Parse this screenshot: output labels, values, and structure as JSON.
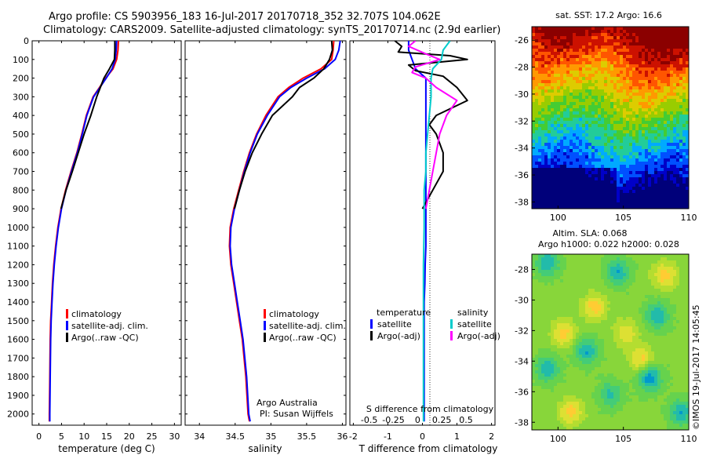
{
  "header": {
    "title_line1": "Argo profile: CS 5903956_183 16-Jul-2017 20170718_352 32.707S 104.062E",
    "title_line2": "Climatology: CARS2009. Satellite-adjusted climatology: synTS_20170714.nc (2.9d earlier)"
  },
  "chart_data": [
    {
      "id": "temperature",
      "type": "line",
      "xlabel": "temperature (deg C)",
      "xlim": [
        -1.5,
        31.5
      ],
      "xticks": [
        0,
        5,
        10,
        15,
        20,
        25,
        30
      ],
      "ylim": [
        0,
        2060
      ],
      "yticks": [
        0,
        100,
        200,
        300,
        400,
        500,
        600,
        700,
        800,
        900,
        1000,
        1100,
        1200,
        1300,
        1400,
        1500,
        1600,
        1700,
        1800,
        1900,
        2000
      ],
      "reversed_y": true,
      "legend": [
        "climatology",
        "satellite-adj. clim.",
        "Argo(..raw -QC)"
      ],
      "series": [
        {
          "name": "climatology",
          "color": "#ff0000",
          "x": [
            17.6,
            17.5,
            17.2,
            16.4,
            14.8,
            13.4,
            12.0,
            10.5,
            9.5,
            8.4,
            7.1,
            5.9,
            4.9,
            4.2,
            3.7,
            3.3,
            3.0,
            2.8,
            2.6,
            2.5,
            2.4,
            2.3,
            2.3
          ],
          "y": [
            0,
            50,
            100,
            150,
            200,
            250,
            300,
            400,
            500,
            600,
            700,
            800,
            900,
            1000,
            1100,
            1200,
            1300,
            1400,
            1500,
            1600,
            1800,
            2000,
            2040
          ]
        },
        {
          "name": "satellite-adj. clim.",
          "color": "#0000ff",
          "x": [
            17.2,
            17.1,
            16.9,
            16.2,
            14.9,
            13.5,
            12.1,
            10.6,
            9.6,
            8.5,
            7.2,
            6.0,
            5.0,
            4.3,
            3.8,
            3.4,
            3.1,
            2.9,
            2.7,
            2.6,
            2.5,
            2.4,
            2.4
          ],
          "y": [
            0,
            50,
            100,
            150,
            200,
            250,
            300,
            400,
            500,
            600,
            700,
            800,
            900,
            1000,
            1100,
            1200,
            1300,
            1400,
            1500,
            1600,
            1800,
            2000,
            2040
          ]
        },
        {
          "name": "Argo(..raw -QC)",
          "color": "#000000",
          "x": [
            16.8,
            16.8,
            16.7,
            15.6,
            14.4,
            13.6,
            12.8,
            11.5,
            10.0,
            8.7,
            7.4,
            6.0,
            4.9
          ],
          "y": [
            0,
            50,
            100,
            150,
            200,
            250,
            300,
            400,
            500,
            600,
            700,
            800,
            900
          ]
        }
      ]
    },
    {
      "id": "salinity",
      "type": "line",
      "xlabel": "salinity",
      "xlim": [
        33.8,
        36.05
      ],
      "xticks": [
        34,
        34.5,
        35,
        35.5,
        36
      ],
      "ylim": [
        0,
        2060
      ],
      "reversed_y": true,
      "legend": [
        "climatology",
        "satellite-adj. clim.",
        "Argo(..raw -QC)"
      ],
      "annotation": [
        "Argo Australia",
        "PI: Susan Wijffels"
      ],
      "series": [
        {
          "name": "climatology",
          "color": "#ff0000",
          "x": [
            35.88,
            35.87,
            35.85,
            35.7,
            35.45,
            35.25,
            35.1,
            34.93,
            34.8,
            34.7,
            34.62,
            34.55,
            34.48,
            34.43,
            34.42,
            34.44,
            34.48,
            34.52,
            34.56,
            34.6,
            34.65,
            34.68,
            34.7
          ],
          "y": [
            0,
            50,
            100,
            150,
            200,
            250,
            300,
            400,
            500,
            600,
            700,
            800,
            900,
            1000,
            1100,
            1200,
            1300,
            1400,
            1500,
            1600,
            1800,
            2000,
            2040
          ]
        },
        {
          "name": "satellite-adj. clim.",
          "color": "#0000ff",
          "x": [
            35.97,
            35.95,
            35.9,
            35.75,
            35.5,
            35.28,
            35.12,
            34.95,
            34.81,
            34.71,
            34.63,
            34.56,
            34.49,
            34.44,
            34.43,
            34.45,
            34.49,
            34.53,
            34.57,
            34.61,
            34.66,
            34.69,
            34.71
          ],
          "y": [
            0,
            50,
            100,
            150,
            200,
            250,
            300,
            400,
            500,
            600,
            700,
            800,
            900,
            1000,
            1100,
            1200,
            1300,
            1400,
            1500,
            1600,
            1800,
            2000,
            2040
          ]
        },
        {
          "name": "Argo(..raw -QC)",
          "color": "#000000",
          "x": [
            35.85,
            35.86,
            35.82,
            35.74,
            35.6,
            35.4,
            35.3,
            35.02,
            34.87,
            34.74,
            34.64,
            34.56,
            34.49
          ],
          "y": [
            0,
            50,
            100,
            150,
            200,
            250,
            300,
            400,
            500,
            600,
            700,
            800,
            900
          ]
        }
      ]
    },
    {
      "id": "difference",
      "type": "line",
      "xlabel": "T difference from climatology",
      "xlabel2": "S difference from climatology",
      "xlim": [
        -2.1,
        2.1
      ],
      "xticks": [
        -2,
        -1,
        0,
        1,
        2
      ],
      "xticks2": [
        -0.5,
        -0.25,
        0,
        0.25,
        0.5
      ],
      "xticklabels2": [
        "-0.5",
        "-0.25",
        "0",
        "0.25",
        "0.5"
      ],
      "ylim": [
        0,
        2060
      ],
      "reversed_y": true,
      "legend_groups": [
        {
          "heading": "temperature",
          "items": [
            "satellite",
            "Argo(-adj)"
          ]
        },
        {
          "heading": "salinity",
          "items": [
            "satellite",
            "Argo(-adj)"
          ]
        }
      ],
      "series": [
        {
          "name": "temperature satellite",
          "color": "#0000ff",
          "x": [
            -0.4,
            -0.4,
            -0.3,
            -0.2,
            0.1,
            0.1,
            0.1,
            0.1,
            0.1,
            0.1,
            0.1,
            0.1,
            0.1,
            0.1,
            0.08,
            0.07,
            0.05,
            0.05,
            0.05,
            0.05,
            0.05,
            0.05
          ],
          "y": [
            0,
            50,
            100,
            150,
            200,
            300,
            400,
            500,
            600,
            700,
            800,
            900,
            1000,
            1100,
            1200,
            1300,
            1400,
            1500,
            1600,
            1800,
            2000,
            2040
          ]
        },
        {
          "name": "temperature Argo(-adj)",
          "color": "#000000",
          "x": [
            -0.8,
            -0.6,
            -0.7,
            0.8,
            1.3,
            -0.4,
            -0.2,
            0.6,
            1.0,
            1.3,
            0.4,
            0.2,
            0.4,
            0.6,
            0.6,
            0.3,
            0.0
          ],
          "y": [
            0,
            30,
            60,
            80,
            100,
            130,
            160,
            190,
            250,
            320,
            400,
            450,
            500,
            600,
            700,
            800,
            900
          ]
        },
        {
          "name": "salinity satellite",
          "color": "#00cccc",
          "x": [
            0.8,
            0.6,
            0.55,
            0.3,
            0.25,
            0.25,
            0.2,
            0.15,
            0.1,
            0.1,
            0.05,
            0.05,
            0.05,
            0.03,
            0.03,
            0.03,
            0.03,
            0.03
          ],
          "y": [
            0,
            50,
            100,
            150,
            200,
            300,
            400,
            500,
            600,
            700,
            800,
            900,
            1000,
            1200,
            1400,
            1600,
            1800,
            2040
          ]
        },
        {
          "name": "salinity Argo(-adj)",
          "color": "#ff00ff",
          "x": [
            -0.2,
            -0.4,
            0.1,
            0.5,
            -0.2,
            -0.3,
            0.1,
            0.4,
            1.0,
            0.7,
            0.6,
            0.5,
            0.4,
            0.3,
            0.2,
            0.1
          ],
          "y": [
            0,
            30,
            70,
            100,
            140,
            170,
            200,
            250,
            320,
            400,
            450,
            500,
            600,
            700,
            800,
            900
          ]
        }
      ]
    },
    {
      "id": "sst_map",
      "type": "heatmap",
      "title": "sat. SST: 17.2  Argo: 16.6",
      "xticks": [
        100,
        105,
        110
      ],
      "yticks": [
        -26,
        -28,
        -30,
        -32,
        -34,
        -36,
        -38
      ],
      "xlim": [
        98,
        110
      ],
      "ylim": [
        -38.5,
        -25
      ]
    },
    {
      "id": "sla_map",
      "type": "heatmap",
      "title": "Altim. SLA: 0.068",
      "subtitle": "Argo h1000: 0.022 h2000: 0.028",
      "xticks": [
        100,
        105,
        110
      ],
      "yticks": [
        -28,
        -30,
        -32,
        -34,
        -36,
        -38
      ],
      "xlim": [
        98,
        110
      ],
      "ylim": [
        -38.5,
        -27
      ]
    }
  ],
  "footer": {
    "stamp": "©IMOS 19-Jul-2017 14:05:45"
  }
}
